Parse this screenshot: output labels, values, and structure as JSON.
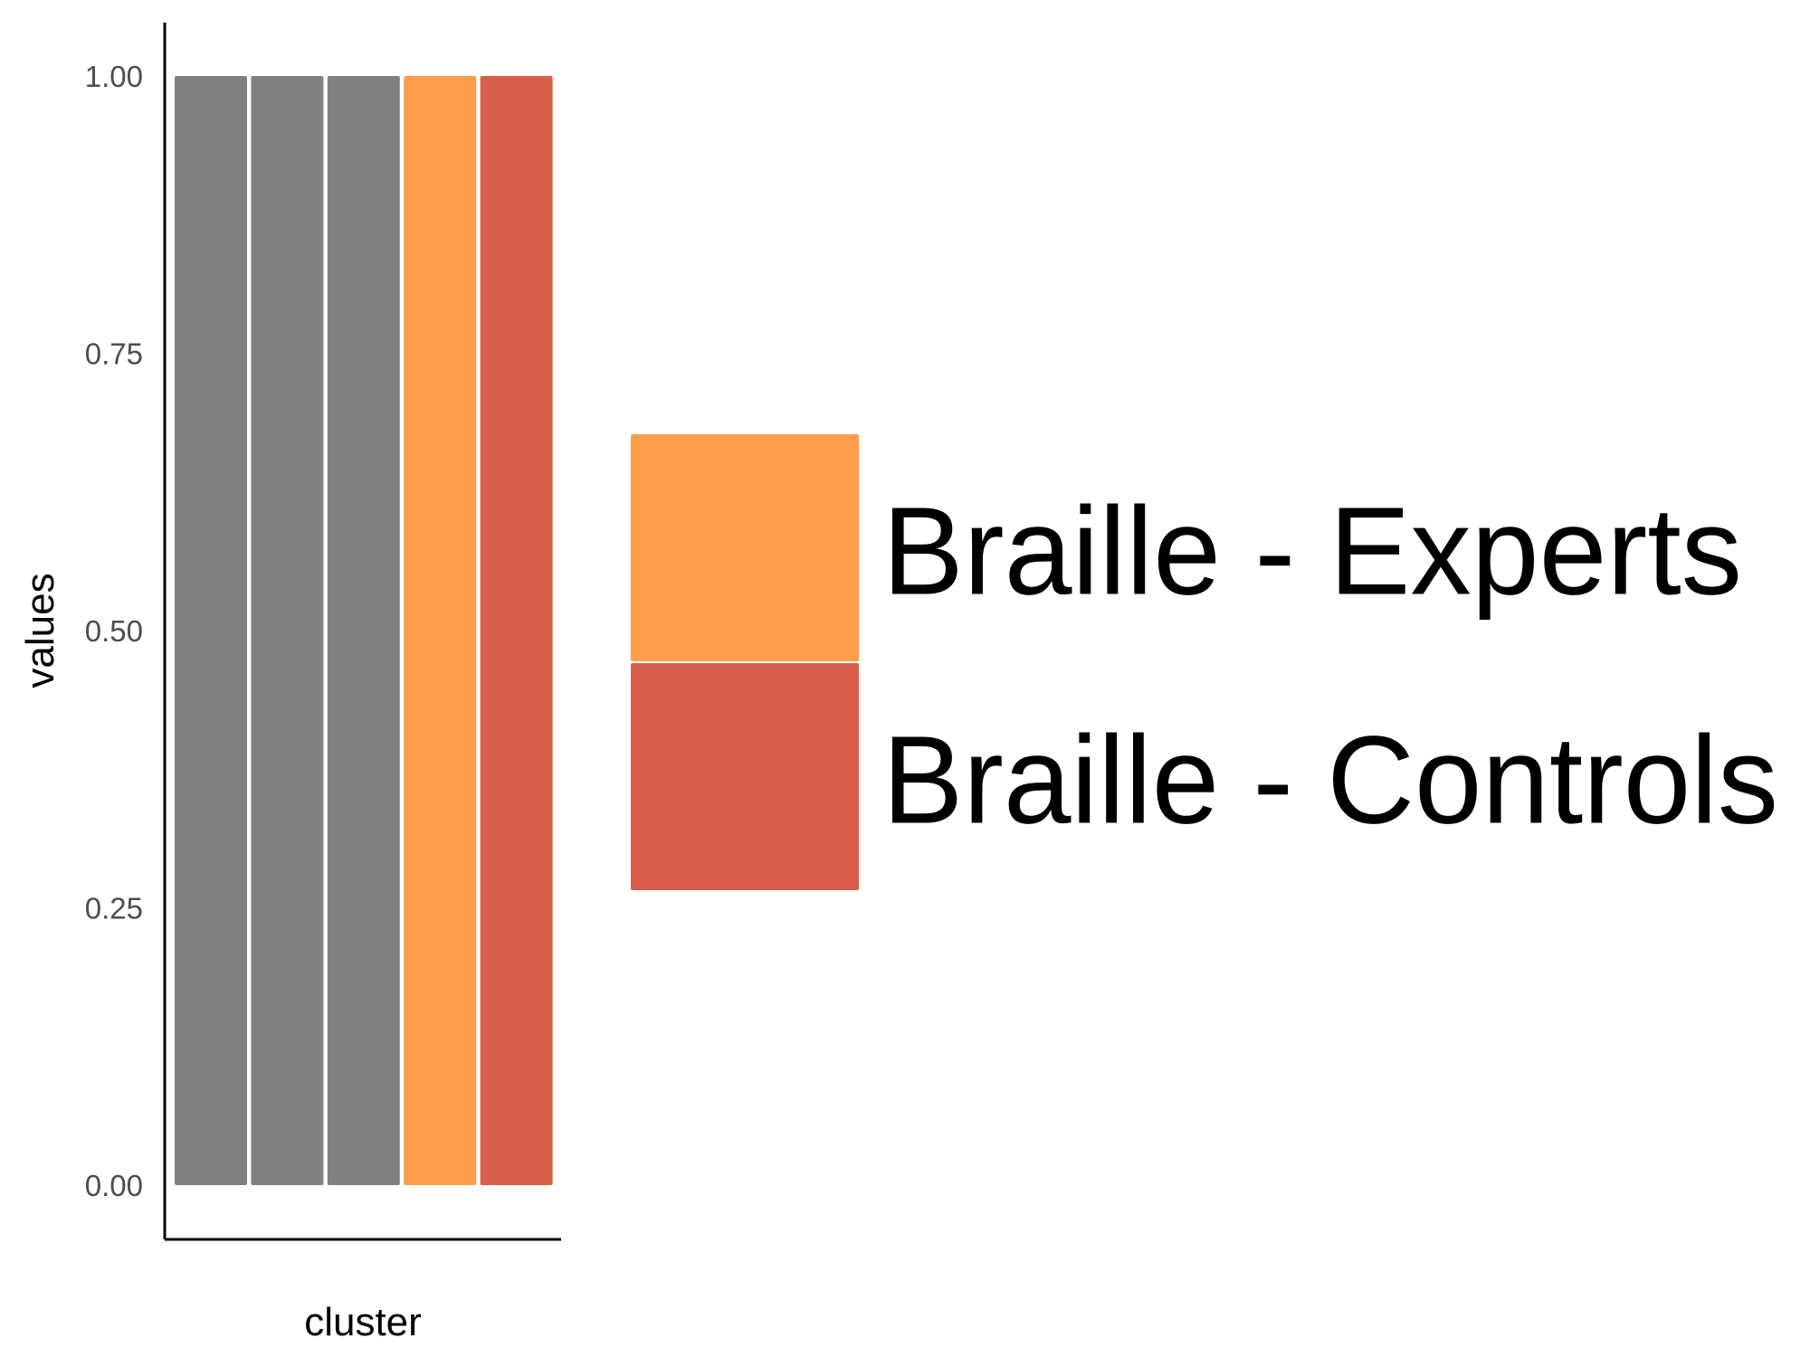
{
  "chart_data": {
    "type": "bar",
    "xlabel": "cluster",
    "ylabel": "values",
    "ylim": [
      -0.05,
      1.05
    ],
    "yticks": [
      0.0,
      0.25,
      0.5,
      0.75,
      1.0
    ],
    "ytick_labels": [
      "0.00",
      "0.25",
      "0.50",
      "0.75",
      "1.00"
    ],
    "grid": false,
    "legend_position": "right",
    "bars": [
      {
        "value": 1.0,
        "color": "#808080"
      },
      {
        "value": 1.0,
        "color": "#808080"
      },
      {
        "value": 1.0,
        "color": "#808080"
      },
      {
        "value": 1.0,
        "color": "#FF9E4A"
      },
      {
        "value": 1.0,
        "color": "#DA5F4A"
      }
    ],
    "legend": [
      {
        "label": "Braille - Experts",
        "color": "#FF9E4A"
      },
      {
        "label": "Braille - Controls",
        "color": "#DA5F4A"
      }
    ]
  }
}
